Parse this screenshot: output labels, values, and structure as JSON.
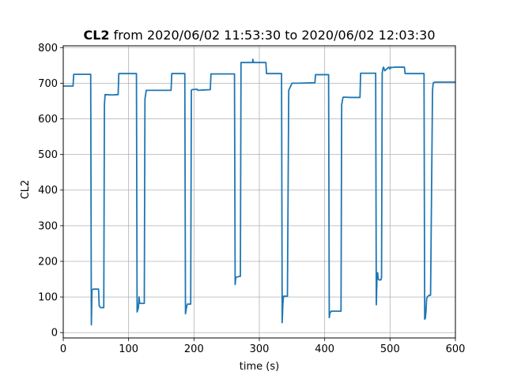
{
  "chart_data": {
    "type": "line",
    "title_bold": "CL2",
    "title_rest": " from 2020/06/02 11:53:30 to 2020/06/02 12:03:30",
    "xlabel": "time (s)",
    "ylabel": "CL2",
    "xlim": [
      0,
      600
    ],
    "ylim": [
      -15,
      805
    ],
    "xticks": [
      0,
      100,
      200,
      300,
      400,
      500,
      600
    ],
    "yticks": [
      0,
      100,
      200,
      300,
      400,
      500,
      600,
      700,
      800
    ],
    "grid": true,
    "line_color": "#1f77b4",
    "series": [
      {
        "x": [
          0,
          15,
          16,
          42,
          43,
          44,
          46,
          47,
          54,
          55,
          57,
          58,
          62,
          63,
          64,
          75,
          84,
          85,
          112,
          113,
          115,
          116,
          117,
          118,
          124,
          125,
          127,
          130,
          165,
          166,
          186,
          187,
          189,
          190,
          195,
          196,
          197,
          205,
          206,
          225,
          226,
          226,
          262,
          263,
          264,
          270,
          271,
          272,
          275,
          285,
          290,
          290,
          291,
          310,
          311,
          334,
          335,
          336,
          337,
          338,
          342,
          343,
          345,
          350,
          360,
          380,
          385,
          386,
          406,
          407,
          408,
          410,
          411,
          425,
          426,
          428,
          429,
          440,
          454,
          455,
          478,
          479,
          480,
          481,
          482,
          483,
          486,
          487,
          488,
          489,
          490,
          492,
          498,
          500,
          501,
          503,
          507,
          522,
          523,
          552,
          553,
          554,
          555,
          556,
          557,
          560,
          562,
          565,
          566,
          568,
          570,
          580,
          600
        ],
        "y": [
          692,
          692,
          725,
          725,
          22,
          120,
          122,
          122,
          122,
          75,
          70,
          70,
          70,
          640,
          668,
          667,
          668,
          727,
          727,
          58,
          70,
          100,
          82,
          82,
          82,
          655,
          680,
          680,
          680,
          727,
          727,
          53,
          75,
          80,
          80,
          680,
          682,
          683,
          680,
          682,
          726,
          726,
          726,
          135,
          155,
          158,
          158,
          758,
          758,
          758,
          758,
          767,
          758,
          758,
          727,
          727,
          28,
          80,
          102,
          102,
          102,
          102,
          680,
          700,
          700,
          701,
          701,
          724,
          724,
          42,
          55,
          60,
          60,
          60,
          640,
          660,
          661,
          660,
          660,
          728,
          728,
          78,
          155,
          168,
          150,
          148,
          148,
          155,
          728,
          740,
          745,
          735,
          745,
          740,
          745,
          744,
          745,
          745,
          727,
          727,
          38,
          40,
          60,
          95,
          100,
          105,
          105,
          680,
          700,
          703,
          703,
          703,
          703
        ]
      }
    ]
  }
}
